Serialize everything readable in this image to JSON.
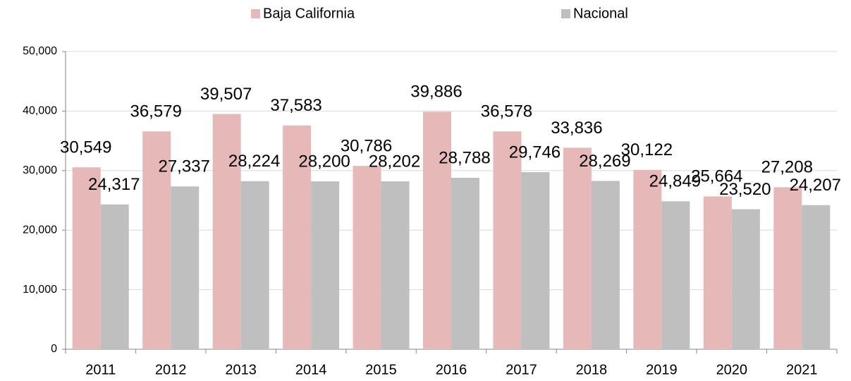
{
  "chart_data": {
    "type": "bar",
    "categories": [
      "2011",
      "2012",
      "2013",
      "2014",
      "2015",
      "2016",
      "2017",
      "2018",
      "2019",
      "2020",
      "2021"
    ],
    "series": [
      {
        "name": "Baja California",
        "color": "#e6b9b8",
        "values": [
          30549,
          36579,
          39507,
          37583,
          30786,
          39886,
          36578,
          33836,
          30122,
          25664,
          27208
        ],
        "value_labels": [
          "30,549",
          "36,579",
          "39,507",
          "37,583",
          "30,786",
          "39,886",
          "36,578",
          "33,836",
          "30,122",
          "25,664",
          "27,208"
        ]
      },
      {
        "name": "Nacional",
        "color": "#bfbfbf",
        "values": [
          24317,
          27337,
          28224,
          28200,
          28202,
          28788,
          29746,
          28269,
          24849,
          23520,
          24207
        ],
        "value_labels": [
          "24,317",
          "27,337",
          "28,224",
          "28,200",
          "28,202",
          "28,788",
          "29,746",
          "28,269",
          "24,849",
          "23,520",
          "24,207"
        ]
      }
    ],
    "ylim": [
      0,
      50000
    ],
    "yticks": [
      0,
      {
        "value": 10000,
        "label": "10,000"
      },
      {
        "value": 20000,
        "label": "20,000"
      },
      {
        "value": 30000,
        "label": "30,000"
      },
      {
        "value": 40000,
        "label": "40,000"
      },
      {
        "value": 50000,
        "label": "50,000"
      }
    ],
    "grid": true,
    "legend": "top"
  }
}
